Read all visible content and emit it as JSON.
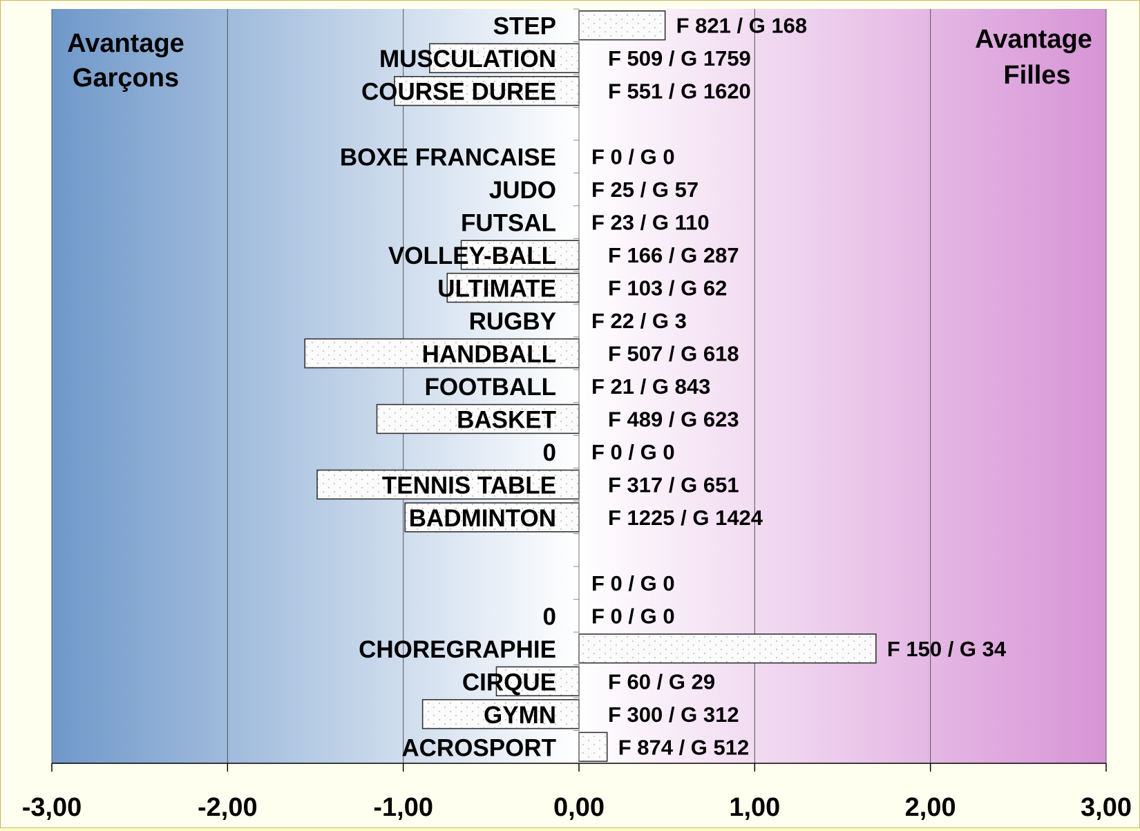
{
  "chart_data": {
    "type": "bar",
    "orientation": "horizontal",
    "left_caption": [
      "Avantage",
      "Garçons"
    ],
    "right_caption": [
      "Avantage",
      "Filles"
    ],
    "xlim": [
      -3,
      3
    ],
    "xticks": [
      "-3,00",
      "-2,00",
      "-1,00",
      "0,00",
      "1,00",
      "2,00",
      "3,00"
    ],
    "grid": "vertical",
    "bar_fill": "dotted",
    "gradient_colors": {
      "left": "#6f98c9",
      "center": "#ffffff",
      "right": "#d794d6"
    },
    "categories": [
      {
        "label": "STEP",
        "value": 0.49,
        "count": "F 821 / G 168"
      },
      {
        "label": "MUSCULATION",
        "value": -0.85,
        "count": "F 509 / G 1759"
      },
      {
        "label": "COURSE  DUREE",
        "value": -1.05,
        "count": "F 551 / G 1620"
      },
      {
        "label": "",
        "value": 0,
        "count": ""
      },
      {
        "label": "BOXE FRANCAISE",
        "value": 0,
        "count": "F 0 / G 0"
      },
      {
        "label": "JUDO",
        "value": 0,
        "count": "F 25 / G 57"
      },
      {
        "label": "FUTSAL",
        "value": 0,
        "count": "F 23 / G 110"
      },
      {
        "label": "VOLLEY-BALL",
        "value": -0.67,
        "count": "F 166 / G 287"
      },
      {
        "label": "ULTIMATE",
        "value": -0.75,
        "count": "F 103 / G 62"
      },
      {
        "label": "RUGBY",
        "value": 0,
        "count": "F 22 / G 3"
      },
      {
        "label": "HANDBALL",
        "value": -1.56,
        "count": "F 507 / G 618"
      },
      {
        "label": "FOOTBALL",
        "value": 0,
        "count": "F 21 / G 843"
      },
      {
        "label": "BASKET",
        "value": -1.15,
        "count": "F 489 / G 623"
      },
      {
        "label": "0",
        "value": 0,
        "count": "F 0 / G 0"
      },
      {
        "label": "TENNIS TABLE",
        "value": -1.49,
        "count": "F 317 / G 651"
      },
      {
        "label": "BADMINTON",
        "value": -0.99,
        "count": "F 1225 / G 1424"
      },
      {
        "label": "",
        "value": 0,
        "count": ""
      },
      {
        "label": "",
        "value": 0,
        "count": "F 0 / G 0"
      },
      {
        "label": "0",
        "value": 0,
        "count": "F 0 / G 0"
      },
      {
        "label": "CHOREGRAPHIE",
        "value": 1.69,
        "count": "F 150 / G 34"
      },
      {
        "label": "CIRQUE",
        "value": -0.47,
        "count": "F 60 / G 29"
      },
      {
        "label": "GYMN",
        "value": -0.89,
        "count": "F 300 / G 312"
      },
      {
        "label": "ACROSPORT",
        "value": 0.16,
        "count": "F 874 / G 512"
      }
    ]
  }
}
